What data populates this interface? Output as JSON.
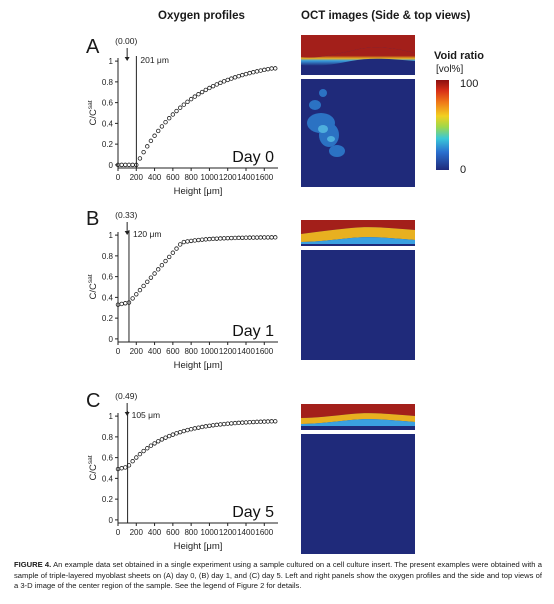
{
  "headers": {
    "left": "Oxygen profiles",
    "right": "OCT images (Side & top views)"
  },
  "axes": {
    "ylabel_main": "C/C",
    "ylabel_sup": "sat",
    "xlabel": "Height [μm]"
  },
  "colorbar": {
    "title": "Void ratio",
    "unit": "[vol%]",
    "max_label": "100",
    "min_label": "0"
  },
  "panels": [
    {
      "letter": "A",
      "day_label": "Day 0",
      "annotation": "(0.00)",
      "line_label": "201 μm"
    },
    {
      "letter": "B",
      "day_label": "Day 1",
      "annotation": "(0.33)",
      "line_label": "120 μm"
    },
    {
      "letter": "C",
      "day_label": "Day 5",
      "annotation": "(0.49)",
      "line_label": "105 μm"
    }
  ],
  "caption": {
    "label": "FIGURE 4.",
    "text": "An example data set obtained in a single experiment using a sample cultured on a cell culture insert. The present examples were obtained with a sample of triple-layered myoblast sheets on (A) day 0, (B) day 1, and (C) day 5. Left and right panels show the oxygen profiles and the side and top views of a 3-D image of the center region of the sample. See the legend of Figure 2 for details."
  },
  "chart_data": [
    {
      "type": "scatter",
      "title": "Day 0",
      "xlabel": "Height [μm]",
      "ylabel": "C/Csat",
      "xlim": [
        0,
        1750
      ],
      "ylim": [
        -0.03,
        1.03
      ],
      "xticks": [
        0,
        200,
        400,
        600,
        800,
        1000,
        1200,
        1400,
        1600
      ],
      "yticks": [
        0,
        0.2,
        0.4,
        0.6,
        0.8,
        1
      ],
      "annotation": "(0.00)",
      "surface_line_x": 201,
      "points_step": 40,
      "series": [
        {
          "x_start": 0,
          "x_end": 1720,
          "profile": "day0"
        }
      ]
    },
    {
      "type": "scatter",
      "title": "Day 1",
      "xlabel": "Height [μm]",
      "ylabel": "C/Csat",
      "xlim": [
        0,
        1750
      ],
      "ylim": [
        -0.03,
        1.03
      ],
      "xticks": [
        0,
        200,
        400,
        600,
        800,
        1000,
        1200,
        1400,
        1600
      ],
      "yticks": [
        0,
        0.2,
        0.4,
        0.6,
        0.8,
        1
      ],
      "annotation": "(0.33)",
      "surface_line_x": 120,
      "points_step": 40,
      "series": [
        {
          "x_start": 0,
          "x_end": 1720,
          "profile": "day1"
        }
      ]
    },
    {
      "type": "scatter",
      "title": "Day 5",
      "xlabel": "Height [μm]",
      "ylabel": "C/Csat",
      "xlim": [
        0,
        1750
      ],
      "ylim": [
        -0.03,
        1.03
      ],
      "xticks": [
        0,
        200,
        400,
        600,
        800,
        1000,
        1200,
        1400,
        1600
      ],
      "yticks": [
        0,
        0.2,
        0.4,
        0.6,
        0.8,
        1
      ],
      "annotation": "(0.49)",
      "surface_line_x": 105,
      "points_step": 40,
      "series": [
        {
          "x_start": 0,
          "x_end": 1720,
          "profile": "day5"
        }
      ]
    }
  ],
  "colors": {
    "oct_background": "#1f2a7a",
    "oct_top": "#a31f1a",
    "white": "#ffffff"
  }
}
